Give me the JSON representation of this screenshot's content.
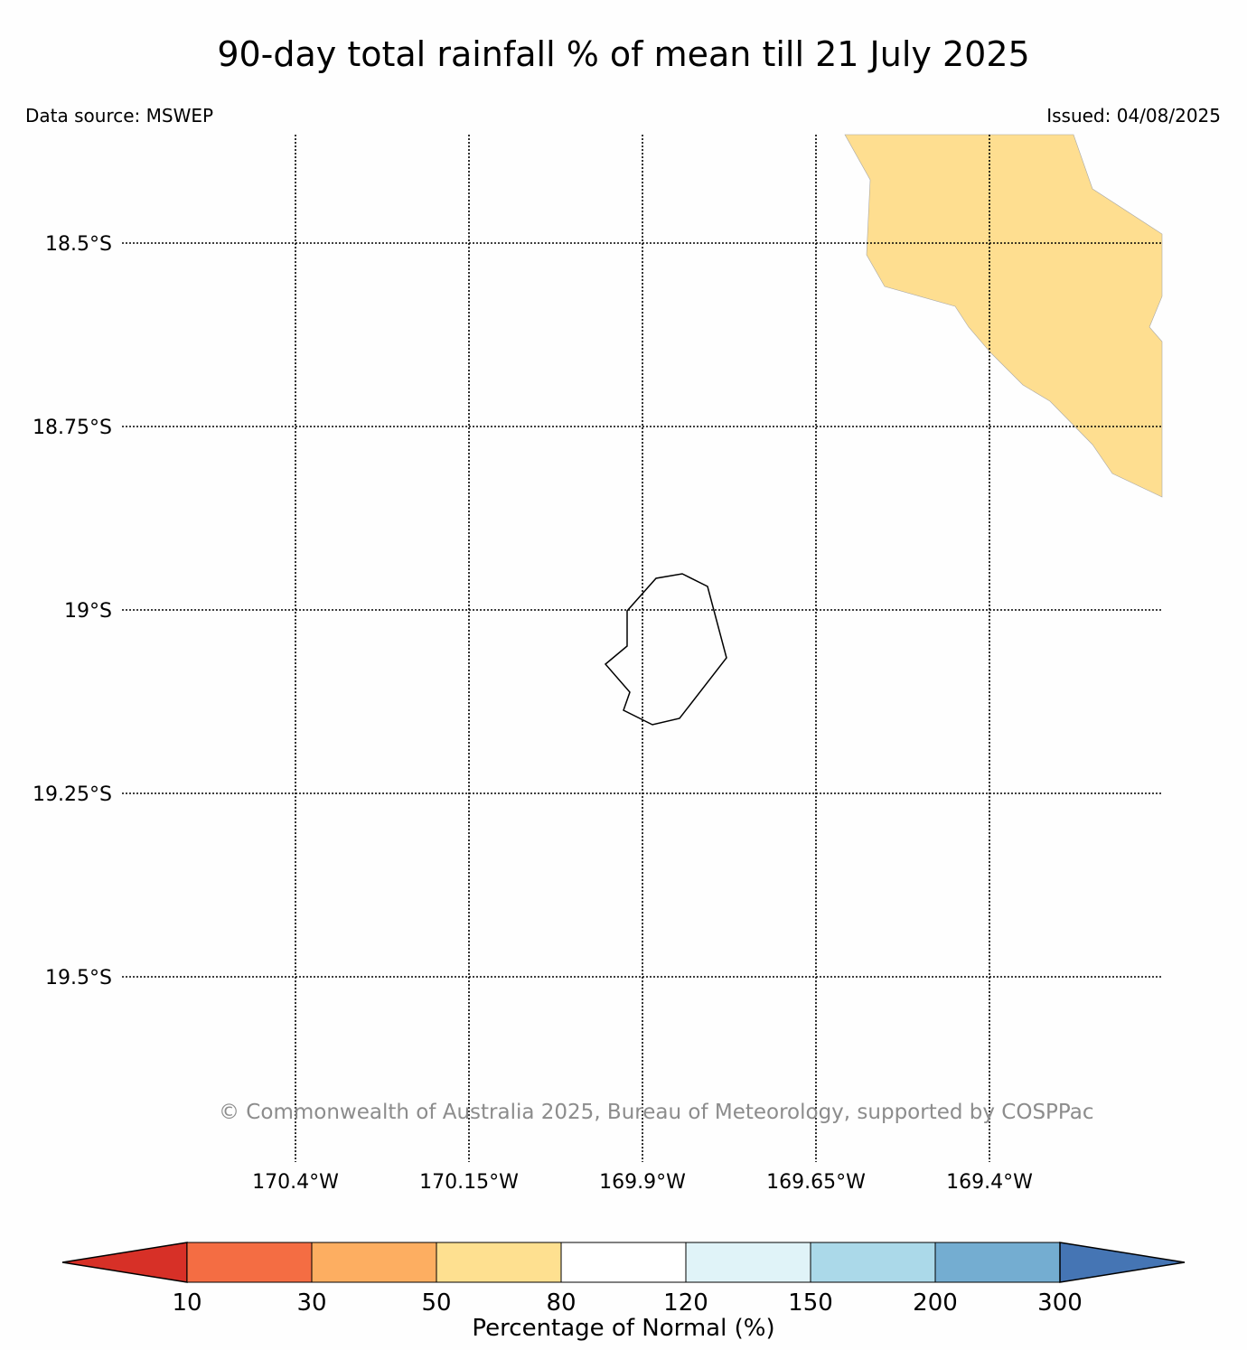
{
  "title": "90-day total rainfall % of mean till 21 July 2025",
  "data_source": "Data source: MSWEP",
  "issued": "Issued: 04/08/2025",
  "copyright": "© Commonwealth of Australia 2025, Bureau of Meteorology, supported by COSPPac",
  "map": {
    "latitude_labels": [
      "18.5°S",
      "18.75°S",
      "19°S",
      "19.25°S",
      "19.5°S"
    ],
    "longitude_labels": [
      "170.4°W",
      "170.15°W",
      "169.9°W",
      "169.65°W",
      "169.4°W"
    ],
    "gridlines": "dotted",
    "shaded_region_category": "50-80",
    "shaded_region_color": "#fede90",
    "island_outline_color": "#000000"
  },
  "colorbar": {
    "title": "Percentage of Normal (%)",
    "tick_labels": [
      "10",
      "30",
      "50",
      "80",
      "120",
      "150",
      "200",
      "300"
    ],
    "colors": [
      "#d73027",
      "#f46d43",
      "#fdae61",
      "#fee090",
      "#ffffff",
      "#e0f3f8",
      "#abd9e9",
      "#74add1",
      "#4575b4"
    ],
    "extend": "both"
  }
}
